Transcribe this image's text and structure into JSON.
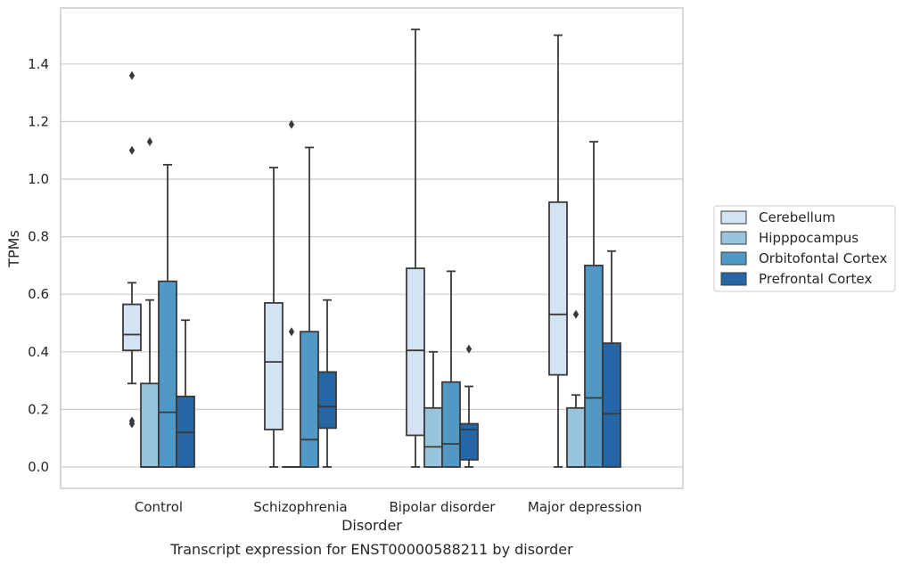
{
  "caption": "Transcript expression for ENST00000588211 by disorder",
  "chart_data": {
    "type": "box",
    "xlabel": "Disorder",
    "ylabel": "TPMs",
    "ylim": [
      -0.07,
      1.6
    ],
    "yticks": [
      "0.0",
      "0.2",
      "0.4",
      "0.6",
      "0.8",
      "1.0",
      "1.2",
      "1.4"
    ],
    "grid": true,
    "legend_position": "right",
    "categories": [
      "Control",
      "Schizophrenia",
      "Bipolar disorder",
      "Major depression"
    ],
    "series": [
      {
        "name": "Cerebellum",
        "color": "#d4e3f3",
        "boxes": [
          {
            "whislo": 0.29,
            "q1": 0.405,
            "med": 0.46,
            "q3": 0.565,
            "whishi": 0.64,
            "fliers": [
              0.15,
              0.16,
              1.1,
              1.36
            ]
          },
          {
            "whislo": 0.0,
            "q1": 0.13,
            "med": 0.365,
            "q3": 0.57,
            "whishi": 1.04,
            "fliers": []
          },
          {
            "whislo": 0.0,
            "q1": 0.11,
            "med": 0.405,
            "q3": 0.69,
            "whishi": 1.52,
            "fliers": []
          },
          {
            "whislo": 0.0,
            "q1": 0.32,
            "med": 0.53,
            "q3": 0.92,
            "whishi": 1.5,
            "fliers": []
          }
        ]
      },
      {
        "name": "Hipppocampus",
        "color": "#98c4dd",
        "boxes": [
          {
            "whislo": 0.0,
            "q1": 0.0,
            "med": 0.0,
            "q3": 0.29,
            "whishi": 0.58,
            "fliers": [
              1.13
            ]
          },
          {
            "whislo": 0.0,
            "q1": 0.0,
            "med": 0.0,
            "q3": 0.0,
            "whishi": 0.0,
            "fliers": [
              0.47,
              1.19
            ]
          },
          {
            "whislo": 0.0,
            "q1": 0.0,
            "med": 0.07,
            "q3": 0.205,
            "whishi": 0.4,
            "fliers": []
          },
          {
            "whislo": 0.0,
            "q1": 0.0,
            "med": 0.0,
            "q3": 0.205,
            "whishi": 0.25,
            "fliers": [
              0.53
            ]
          }
        ]
      },
      {
        "name": "Orbitofontal Cortex",
        "color": "#5099c7",
        "boxes": [
          {
            "whislo": 0.0,
            "q1": 0.0,
            "med": 0.19,
            "q3": 0.645,
            "whishi": 1.05,
            "fliers": []
          },
          {
            "whislo": 0.0,
            "q1": 0.0,
            "med": 0.095,
            "q3": 0.47,
            "whishi": 1.11,
            "fliers": []
          },
          {
            "whislo": 0.0,
            "q1": 0.0,
            "med": 0.08,
            "q3": 0.295,
            "whishi": 0.68,
            "fliers": []
          },
          {
            "whislo": 0.0,
            "q1": 0.0,
            "med": 0.24,
            "q3": 0.7,
            "whishi": 1.13,
            "fliers": []
          }
        ]
      },
      {
        "name": "Prefrontal Cortex",
        "color": "#2466a6",
        "boxes": [
          {
            "whislo": 0.0,
            "q1": 0.0,
            "med": 0.12,
            "q3": 0.245,
            "whishi": 0.51,
            "fliers": []
          },
          {
            "whislo": 0.0,
            "q1": 0.135,
            "med": 0.21,
            "q3": 0.33,
            "whishi": 0.58,
            "fliers": []
          },
          {
            "whislo": 0.0,
            "q1": 0.025,
            "med": 0.13,
            "q3": 0.15,
            "whishi": 0.28,
            "fliers": [
              0.41
            ]
          },
          {
            "whislo": 0.0,
            "q1": 0.0,
            "med": 0.185,
            "q3": 0.43,
            "whishi": 0.75,
            "fliers": []
          }
        ]
      }
    ]
  }
}
